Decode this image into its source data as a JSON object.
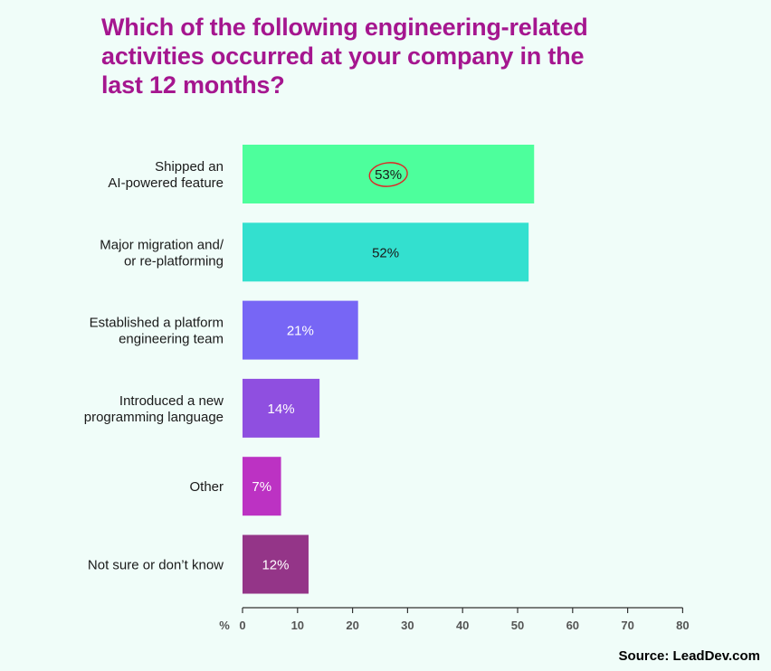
{
  "chart_data": {
    "type": "bar",
    "orientation": "horizontal",
    "title": "Which of the following engineering-related activities occurred at your company in the last 12 months?",
    "categories": [
      [
        "Shipped an",
        "AI-powered feature"
      ],
      [
        "Major migration and/",
        "or re-platforming"
      ],
      [
        "Established a platform",
        "engineering team"
      ],
      [
        "Introduced a new",
        "programming language"
      ],
      [
        "Other"
      ],
      [
        "Not sure or don’t know"
      ]
    ],
    "values": [
      53,
      52,
      21,
      14,
      7,
      12
    ],
    "value_labels": [
      "53%",
      "52%",
      "21%",
      "14%",
      "7%",
      "12%"
    ],
    "bar_colors": [
      "#4dff9c",
      "#33e0cf",
      "#7766f5",
      "#8f4fe0",
      "#bc32c3",
      "#943588"
    ],
    "label_colors": [
      "#1a1a1a",
      "#1a1a1a",
      "#ffffff",
      "#ffffff",
      "#ffffff",
      "#ffffff"
    ],
    "highlighted_index": 0,
    "x_unit_label": "%",
    "xlim": [
      0,
      80
    ],
    "xticks": [
      0,
      10,
      20,
      30,
      40,
      50,
      60,
      70,
      80
    ],
    "grid": false
  },
  "source": "Source: LeadDev.com",
  "colors": {
    "title": "#a5168f",
    "axis": "#333333",
    "highlight_circle": "#e02424",
    "category_text": "#1a1a1a"
  }
}
